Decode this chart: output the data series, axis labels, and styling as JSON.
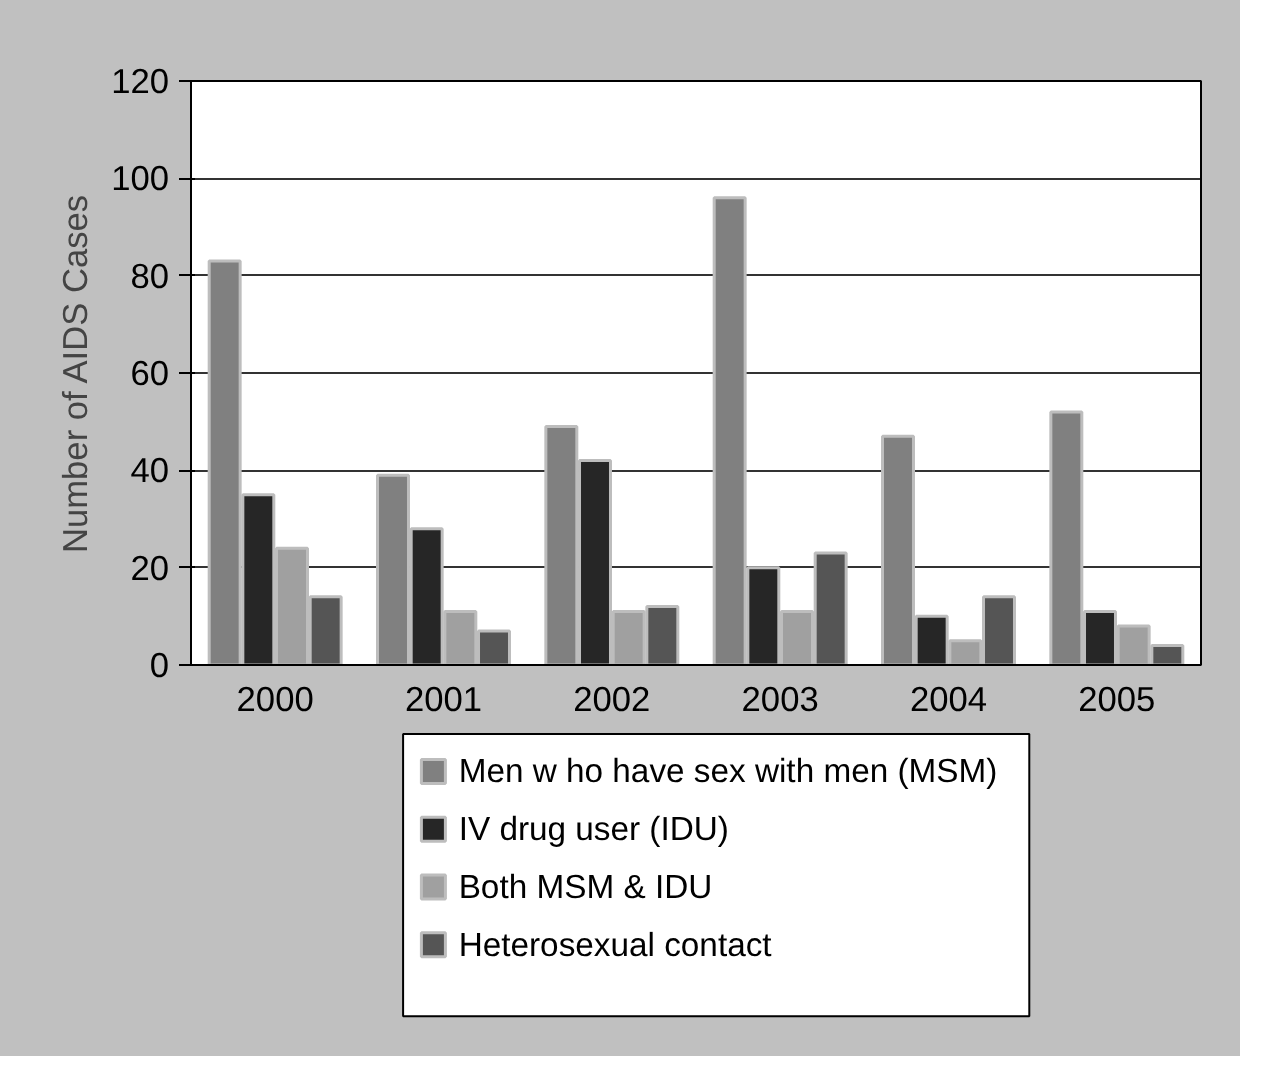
{
  "chart_data": {
    "type": "bar",
    "ylabel": "Number of AIDS Cases",
    "categories": [
      "2000",
      "2001",
      "2002",
      "2003",
      "2004",
      "2005"
    ],
    "series": [
      {
        "name": "Men w ho have sex with men (MSM)",
        "color": "#808080",
        "values": [
          83,
          39,
          49,
          96,
          47,
          52
        ]
      },
      {
        "name": "IV drug user (IDU)",
        "color": "#262626",
        "values": [
          35,
          28,
          42,
          20,
          10,
          11
        ]
      },
      {
        "name": "Both MSM & IDU",
        "color": "#a0a0a0",
        "values": [
          24,
          11,
          11,
          11,
          5,
          8
        ]
      },
      {
        "name": "Heterosexual contact",
        "color": "#555555",
        "values": [
          14,
          7,
          12,
          23,
          14,
          4
        ]
      }
    ],
    "ylim": [
      0,
      120
    ],
    "yticks": [
      0,
      20,
      40,
      60,
      80,
      100,
      120
    ],
    "grid": "y",
    "legend": "bottom"
  }
}
